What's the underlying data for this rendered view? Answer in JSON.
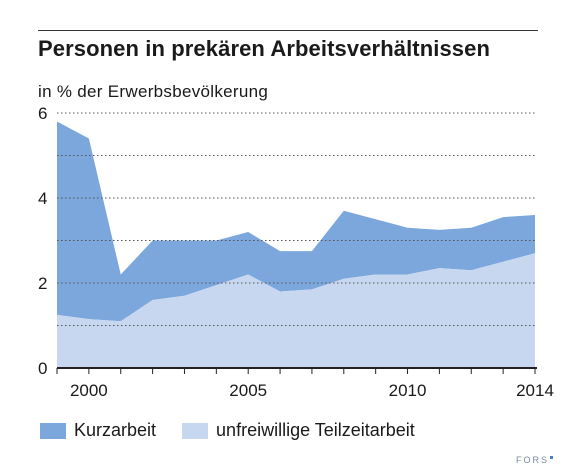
{
  "title": "Personen in prekären Arbeitsverhältnissen",
  "subtitle": "in % der Erwerbsbevölkerung",
  "source": "FORS",
  "colors": {
    "kurzarbeit": "#7ba7dc",
    "teilzeit": "#c8d7f0",
    "grid": "#555555",
    "axis": "#222222"
  },
  "chart_data": {
    "type": "area",
    "stacked": true,
    "x": [
      1999,
      2000,
      2001,
      2002,
      2003,
      2004,
      2005,
      2006,
      2007,
      2008,
      2009,
      2010,
      2011,
      2012,
      2013,
      2014
    ],
    "series": [
      {
        "name": "unfreiwillige Teilzeitarbeit",
        "values": [
          1.25,
          1.15,
          1.1,
          1.6,
          1.7,
          1.95,
          2.2,
          1.8,
          1.85,
          2.1,
          2.2,
          2.2,
          2.35,
          2.3,
          2.5,
          2.7
        ]
      },
      {
        "name": "Kurzarbeit",
        "values": [
          4.55,
          4.25,
          1.1,
          1.4,
          1.3,
          1.05,
          1.0,
          0.95,
          0.9,
          1.6,
          1.3,
          1.1,
          0.9,
          1.0,
          1.05,
          0.9
        ]
      }
    ],
    "xlim": [
      1999,
      2014
    ],
    "ylim": [
      0,
      6
    ],
    "x_ticks": [
      2000,
      2005,
      2010,
      2014
    ],
    "y_ticks": [
      0,
      2,
      4,
      6
    ],
    "grid": true,
    "legend_position": "bottom-left"
  }
}
